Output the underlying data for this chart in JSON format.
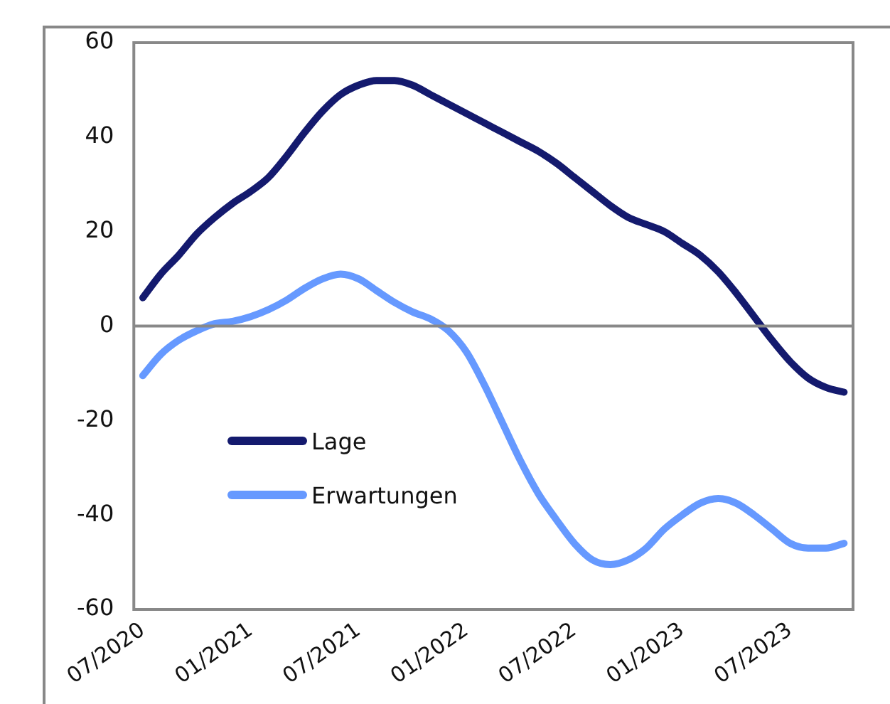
{
  "chart_data": {
    "type": "line",
    "categories": [
      "07/2020",
      null,
      null,
      null,
      null,
      null,
      "01/2021",
      null,
      null,
      null,
      null,
      null,
      "07/2021",
      null,
      null,
      null,
      null,
      null,
      "01/2022",
      null,
      null,
      null,
      null,
      null,
      "07/2022",
      null,
      null,
      null,
      null,
      null,
      "01/2023",
      null,
      null,
      null,
      null,
      null,
      "07/2023",
      null,
      null,
      null
    ],
    "series": [
      {
        "name": "Lage",
        "color": "#141a6e",
        "values": [
          6,
          11,
          15,
          19.5,
          23,
          26,
          28.5,
          31.5,
          36,
          41,
          45.5,
          49,
          51,
          52,
          52,
          51,
          49,
          47,
          45,
          43,
          41,
          39,
          37,
          34.5,
          31.5,
          28.5,
          25.5,
          23,
          21.5,
          20,
          17.5,
          15,
          11.5,
          7,
          2,
          -3,
          -7.5,
          -11,
          -13,
          -14
        ]
      },
      {
        "name": "Erwartungen",
        "color": "#6699ff",
        "values": [
          -10.5,
          -6,
          -3,
          -1,
          0.5,
          1,
          2,
          3.5,
          5.5,
          8,
          10,
          11,
          10,
          7.5,
          5,
          3,
          1.5,
          -1,
          -5.5,
          -12.5,
          -20.5,
          -28.5,
          -35.5,
          -41,
          -46,
          -49.5,
          -50.5,
          -49.5,
          -47,
          -43,
          -40,
          -37.5,
          -36.5,
          -37.5,
          -40,
          -43,
          -46,
          -47,
          -47,
          -46
        ]
      }
    ],
    "ylim": [
      -60,
      60
    ],
    "yticks": [
      -60,
      -40,
      -20,
      0,
      20,
      40,
      60
    ],
    "ref_lines": [
      {
        "axis": "y",
        "value": 0,
        "color": "#888888"
      }
    ],
    "legend": "bottom left",
    "marker": "none",
    "line_style": "solid"
  }
}
